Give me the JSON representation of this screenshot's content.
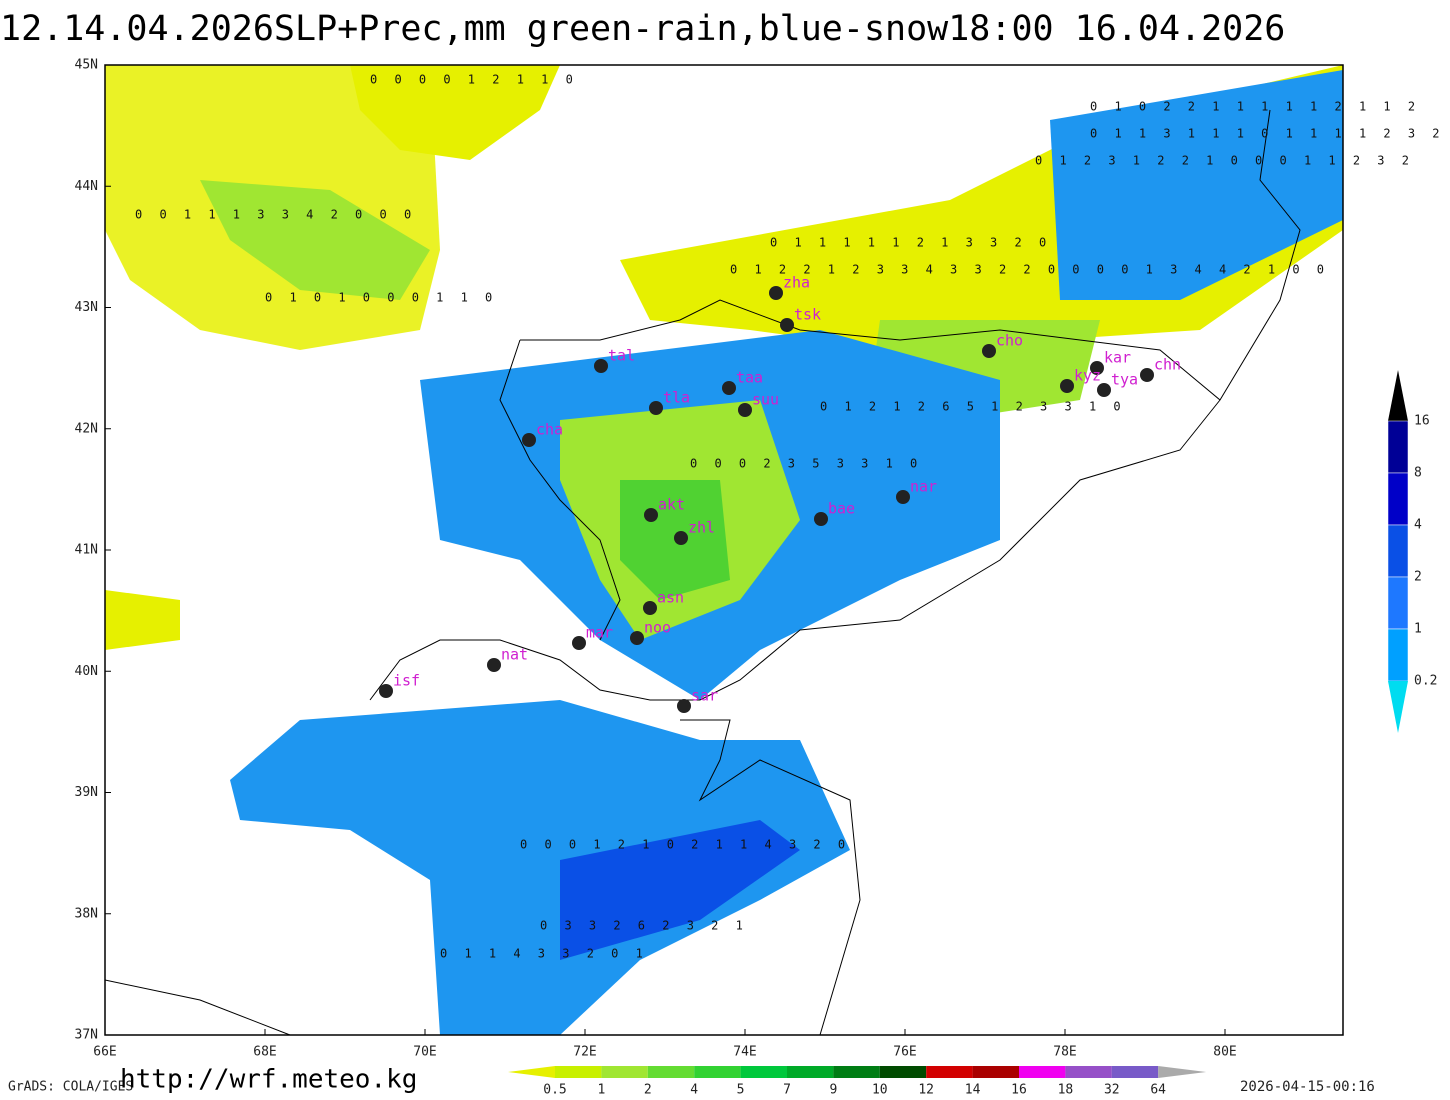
{
  "header": {
    "title": "12.14.04.2026SLP+Prec,mm  green-rain,blue-snow18:00  16.04.2026"
  },
  "axes": {
    "lat_labels": [
      "45N",
      "44N",
      "43N",
      "42N",
      "41N",
      "40N",
      "39N",
      "38N",
      "37N"
    ],
    "lon_labels": [
      "66E",
      "68E",
      "70E",
      "72E",
      "74E",
      "76E",
      "78E",
      "80E"
    ]
  },
  "stations": [
    "zha",
    "tsk",
    "tal",
    "cho",
    "kar",
    "kyz",
    "tya",
    "chn",
    "taa",
    "tla",
    "suu",
    "cha",
    "nar",
    "bae",
    "akt",
    "zhl",
    "asn",
    "mar",
    "noo",
    "nat",
    "isf",
    "sar"
  ],
  "grid_numbers": [
    "0 0 0 0 1 2 1 1 0",
    "0 1 0 2 2 1 1 1 1 1 2 1 1 2",
    "0 1 1 3 1 1 1 0 1 1 1 1 2 3 2",
    "0 1 2 3 1 2 2 1 0 0 0 1 1 2 3 2",
    "0 0 1 1 1 3 3 4 2 0 0 0",
    "0 1 2 2 1 2 3 3 4 3 3 2 2 0 0 0 0 1 3 4 4 2 1 0 0",
    "0 1 1 1 1 1 2 1 3 3 2 0",
    "0 1 0 1 0 0 0 1 1 0",
    "0 1 2 1 2 6 5 1 2 3 3 1 0",
    "0 0 0 2 3 5 3 3 1 0",
    "0 3 3 2 6 2 3 2 1",
    "0 0 0 1 2 1 0 2 1 1 4 3 2 0",
    "0 1 1 4 3 3 2 0 1"
  ],
  "colorbar_right": {
    "labels": [
      "16",
      "8",
      "4",
      "2",
      "1",
      "0.2"
    ]
  },
  "colorbar_bottom": {
    "labels": [
      "0.5",
      "1",
      "2",
      "4",
      "5",
      "7",
      "9",
      "10",
      "12",
      "14",
      "16",
      "18",
      "32",
      "64"
    ]
  },
  "footer": {
    "left": "GrADS: COLA/IGES",
    "url": "http://wrf.meteo.kg",
    "date": "2026-04-15-00:16"
  }
}
